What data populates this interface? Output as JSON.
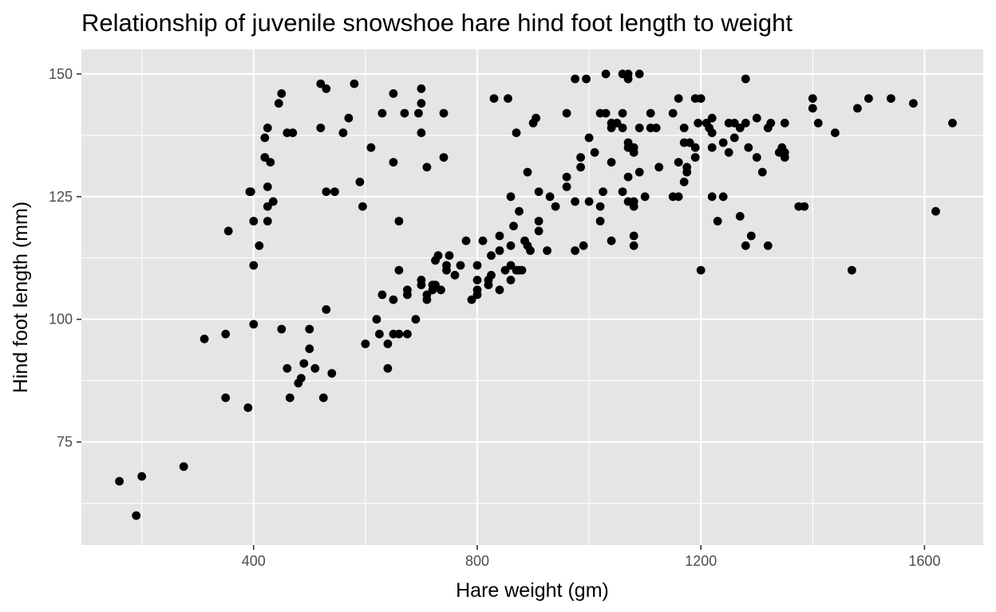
{
  "chart_data": {
    "type": "scatter",
    "title": "Relationship of juvenile snowshoe hare hind foot length to weight",
    "xlabel": "Hare weight (gm)",
    "ylabel": "Hind foot length (mm)",
    "xlim": [
      92,
      1705
    ],
    "ylim": [
      54,
      155
    ],
    "x_ticks": [
      400,
      800,
      1200,
      1600
    ],
    "y_ticks": [
      75,
      100,
      125,
      150
    ],
    "x_minor": [
      200,
      600,
      1000,
      1400
    ],
    "y_minor": [
      62.5,
      87.5,
      112.5,
      137.5
    ],
    "grid": true,
    "legend": "none",
    "point_color": "#000000",
    "panel_color": "#e5e5e5",
    "points": [
      [
        160,
        67
      ],
      [
        190,
        60
      ],
      [
        200,
        68
      ],
      [
        275,
        70
      ],
      [
        312,
        96
      ],
      [
        350,
        97
      ],
      [
        350,
        84
      ],
      [
        355,
        118
      ],
      [
        390,
        82
      ],
      [
        393,
        126
      ],
      [
        395,
        126
      ],
      [
        400,
        120
      ],
      [
        400,
        111
      ],
      [
        400,
        99
      ],
      [
        410,
        115
      ],
      [
        420,
        137
      ],
      [
        420,
        133
      ],
      [
        425,
        139
      ],
      [
        425,
        127
      ],
      [
        425,
        123
      ],
      [
        425,
        120
      ],
      [
        430,
        132
      ],
      [
        435,
        124
      ],
      [
        445,
        144
      ],
      [
        450,
        146
      ],
      [
        450,
        98
      ],
      [
        460,
        138
      ],
      [
        460,
        90
      ],
      [
        465,
        84
      ],
      [
        470,
        138
      ],
      [
        480,
        87
      ],
      [
        485,
        88
      ],
      [
        490,
        91
      ],
      [
        500,
        98
      ],
      [
        500,
        94
      ],
      [
        510,
        90
      ],
      [
        520,
        148
      ],
      [
        520,
        139
      ],
      [
        525,
        84
      ],
      [
        530,
        147
      ],
      [
        530,
        126
      ],
      [
        530,
        102
      ],
      [
        540,
        89
      ],
      [
        545,
        126
      ],
      [
        560,
        138
      ],
      [
        570,
        141
      ],
      [
        580,
        148
      ],
      [
        590,
        128
      ],
      [
        595,
        123
      ],
      [
        600,
        95
      ],
      [
        610,
        135
      ],
      [
        620,
        100
      ],
      [
        625,
        97
      ],
      [
        630,
        142
      ],
      [
        630,
        105
      ],
      [
        640,
        95
      ],
      [
        640,
        90
      ],
      [
        650,
        146
      ],
      [
        650,
        132
      ],
      [
        650,
        104
      ],
      [
        650,
        97
      ],
      [
        660,
        120
      ],
      [
        660,
        110
      ],
      [
        660,
        97
      ],
      [
        670,
        142
      ],
      [
        675,
        106
      ],
      [
        675,
        105
      ],
      [
        675,
        97
      ],
      [
        690,
        100
      ],
      [
        695,
        142
      ],
      [
        700,
        147
      ],
      [
        700,
        144
      ],
      [
        700,
        138
      ],
      [
        700,
        108
      ],
      [
        700,
        107
      ],
      [
        710,
        131
      ],
      [
        710,
        105
      ],
      [
        710,
        104
      ],
      [
        720,
        107
      ],
      [
        720,
        106
      ],
      [
        725,
        112
      ],
      [
        725,
        107
      ],
      [
        730,
        113
      ],
      [
        735,
        106
      ],
      [
        740,
        142
      ],
      [
        740,
        133
      ],
      [
        745,
        111
      ],
      [
        745,
        110
      ],
      [
        750,
        113
      ],
      [
        760,
        109
      ],
      [
        770,
        111
      ],
      [
        780,
        116
      ],
      [
        790,
        104
      ],
      [
        800,
        111
      ],
      [
        800,
        108
      ],
      [
        800,
        106
      ],
      [
        800,
        105
      ],
      [
        810,
        116
      ],
      [
        820,
        107
      ],
      [
        820,
        108
      ],
      [
        825,
        109
      ],
      [
        825,
        113
      ],
      [
        830,
        145
      ],
      [
        840,
        117
      ],
      [
        840,
        114
      ],
      [
        840,
        106
      ],
      [
        850,
        110
      ],
      [
        855,
        145
      ],
      [
        860,
        125
      ],
      [
        860,
        115
      ],
      [
        860,
        111
      ],
      [
        860,
        108
      ],
      [
        865,
        119
      ],
      [
        870,
        138
      ],
      [
        870,
        110
      ],
      [
        875,
        122
      ],
      [
        875,
        110
      ],
      [
        880,
        110
      ],
      [
        885,
        116
      ],
      [
        890,
        130
      ],
      [
        890,
        115
      ],
      [
        895,
        114
      ],
      [
        900,
        140
      ],
      [
        905,
        141
      ],
      [
        910,
        126
      ],
      [
        910,
        120
      ],
      [
        910,
        118
      ],
      [
        925,
        114
      ],
      [
        930,
        125
      ],
      [
        940,
        123
      ],
      [
        960,
        142
      ],
      [
        960,
        129
      ],
      [
        960,
        127
      ],
      [
        975,
        149
      ],
      [
        975,
        124
      ],
      [
        975,
        114
      ],
      [
        985,
        133
      ],
      [
        985,
        131
      ],
      [
        990,
        115
      ],
      [
        995,
        149
      ],
      [
        1000,
        137
      ],
      [
        1000,
        124
      ],
      [
        1010,
        134
      ],
      [
        1020,
        142
      ],
      [
        1020,
        123
      ],
      [
        1020,
        120
      ],
      [
        1025,
        126
      ],
      [
        1030,
        150
      ],
      [
        1030,
        142
      ],
      [
        1040,
        140
      ],
      [
        1040,
        139
      ],
      [
        1040,
        132
      ],
      [
        1040,
        116
      ],
      [
        1050,
        140
      ],
      [
        1060,
        150
      ],
      [
        1060,
        142
      ],
      [
        1060,
        139
      ],
      [
        1060,
        126
      ],
      [
        1070,
        150
      ],
      [
        1070,
        149
      ],
      [
        1070,
        136
      ],
      [
        1070,
        135
      ],
      [
        1070,
        129
      ],
      [
        1070,
        124
      ],
      [
        1080,
        135
      ],
      [
        1080,
        134
      ],
      [
        1080,
        124
      ],
      [
        1080,
        123
      ],
      [
        1080,
        117
      ],
      [
        1080,
        115
      ],
      [
        1090,
        150
      ],
      [
        1090,
        139
      ],
      [
        1090,
        130
      ],
      [
        1100,
        125
      ],
      [
        1110,
        142
      ],
      [
        1110,
        139
      ],
      [
        1120,
        139
      ],
      [
        1125,
        131
      ],
      [
        1150,
        142
      ],
      [
        1150,
        125
      ],
      [
        1160,
        145
      ],
      [
        1160,
        132
      ],
      [
        1160,
        125
      ],
      [
        1170,
        139
      ],
      [
        1170,
        136
      ],
      [
        1170,
        128
      ],
      [
        1175,
        131
      ],
      [
        1175,
        130
      ],
      [
        1180,
        136
      ],
      [
        1190,
        145
      ],
      [
        1190,
        135
      ],
      [
        1190,
        133
      ],
      [
        1195,
        140
      ],
      [
        1200,
        145
      ],
      [
        1200,
        110
      ],
      [
        1210,
        140
      ],
      [
        1215,
        139
      ],
      [
        1220,
        141
      ],
      [
        1220,
        138
      ],
      [
        1220,
        135
      ],
      [
        1220,
        125
      ],
      [
        1230,
        120
      ],
      [
        1240,
        136
      ],
      [
        1240,
        125
      ],
      [
        1250,
        140
      ],
      [
        1250,
        134
      ],
      [
        1260,
        140
      ],
      [
        1260,
        137
      ],
      [
        1270,
        139
      ],
      [
        1270,
        121
      ],
      [
        1280,
        149
      ],
      [
        1280,
        140
      ],
      [
        1280,
        115
      ],
      [
        1285,
        135
      ],
      [
        1290,
        117
      ],
      [
        1300,
        141
      ],
      [
        1300,
        133
      ],
      [
        1310,
        130
      ],
      [
        1320,
        139
      ],
      [
        1320,
        115
      ],
      [
        1325,
        140
      ],
      [
        1340,
        134
      ],
      [
        1345,
        135
      ],
      [
        1350,
        140
      ],
      [
        1350,
        134
      ],
      [
        1350,
        133
      ],
      [
        1375,
        123
      ],
      [
        1385,
        123
      ],
      [
        1400,
        145
      ],
      [
        1400,
        143
      ],
      [
        1410,
        140
      ],
      [
        1440,
        138
      ],
      [
        1470,
        110
      ],
      [
        1480,
        143
      ],
      [
        1500,
        145
      ],
      [
        1540,
        145
      ],
      [
        1580,
        144
      ],
      [
        1620,
        122
      ],
      [
        1650,
        140
      ]
    ]
  }
}
